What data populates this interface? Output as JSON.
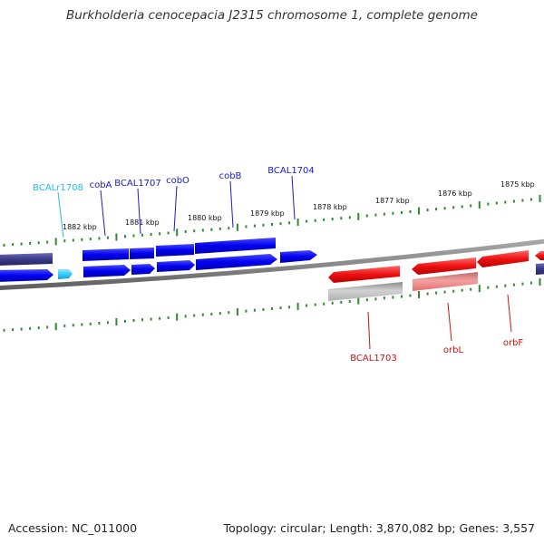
{
  "title": "Burkholderia cenocepacia J2315 chromosome 1, complete genome",
  "footer": {
    "accession": "Accession: NC_011000",
    "topology": "Topology: circular; Length: 3,870,082 bp; Genes: 3,557"
  },
  "colors": {
    "forward_gene": "#0000ee",
    "forward_cds": "#1a1aa0",
    "rna_gene": "#33ccff",
    "reverse_gene": "#ee1111",
    "reverse_cds_light": "#f08a8a",
    "pseudo_gray": "#b5b5b5",
    "backbone": "#808080",
    "tick": "#2e8b2e",
    "label_forward": "#1a1acc",
    "label_rna": "#22bbee",
    "label_reverse": "#cc1111"
  },
  "scale_labels": [
    "1882 kbp",
    "1881 kbp",
    "1880 kbp",
    "1879 kbp",
    "1878 kbp",
    "1877 kbp",
    "1876 kbp",
    "1875 kbp"
  ],
  "gene_labels": {
    "forward": [
      "BCALr1708",
      "cobA",
      "BCAL1707",
      "cobO",
      "cobB",
      "BCAL1704"
    ],
    "reverse": [
      "BCAL1703",
      "orbL",
      "orbF"
    ]
  }
}
